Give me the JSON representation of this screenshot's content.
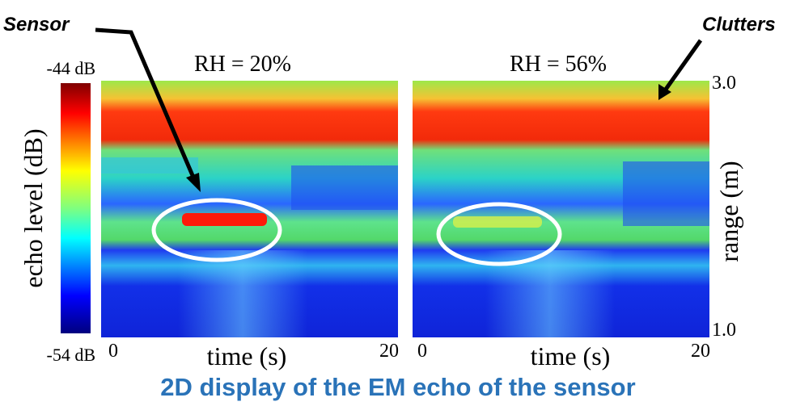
{
  "labels": {
    "sensor": "Sensor",
    "clutters": "Clutters"
  },
  "colorbar": {
    "top": "-44 dB",
    "bottom": "-54 dB",
    "title": "echo level (dB)"
  },
  "panels": [
    {
      "title": "RH = 20%",
      "x_start": "0",
      "x_end": "20",
      "x_label": "time (s)"
    },
    {
      "title": "RH = 56%",
      "x_start": "0",
      "x_end": "20",
      "x_label": "time (s)"
    }
  ],
  "range_axis": {
    "top": "3.0",
    "bottom": "1.0",
    "label": "range (m)"
  },
  "caption": "2D display of the EM echo of the sensor"
}
